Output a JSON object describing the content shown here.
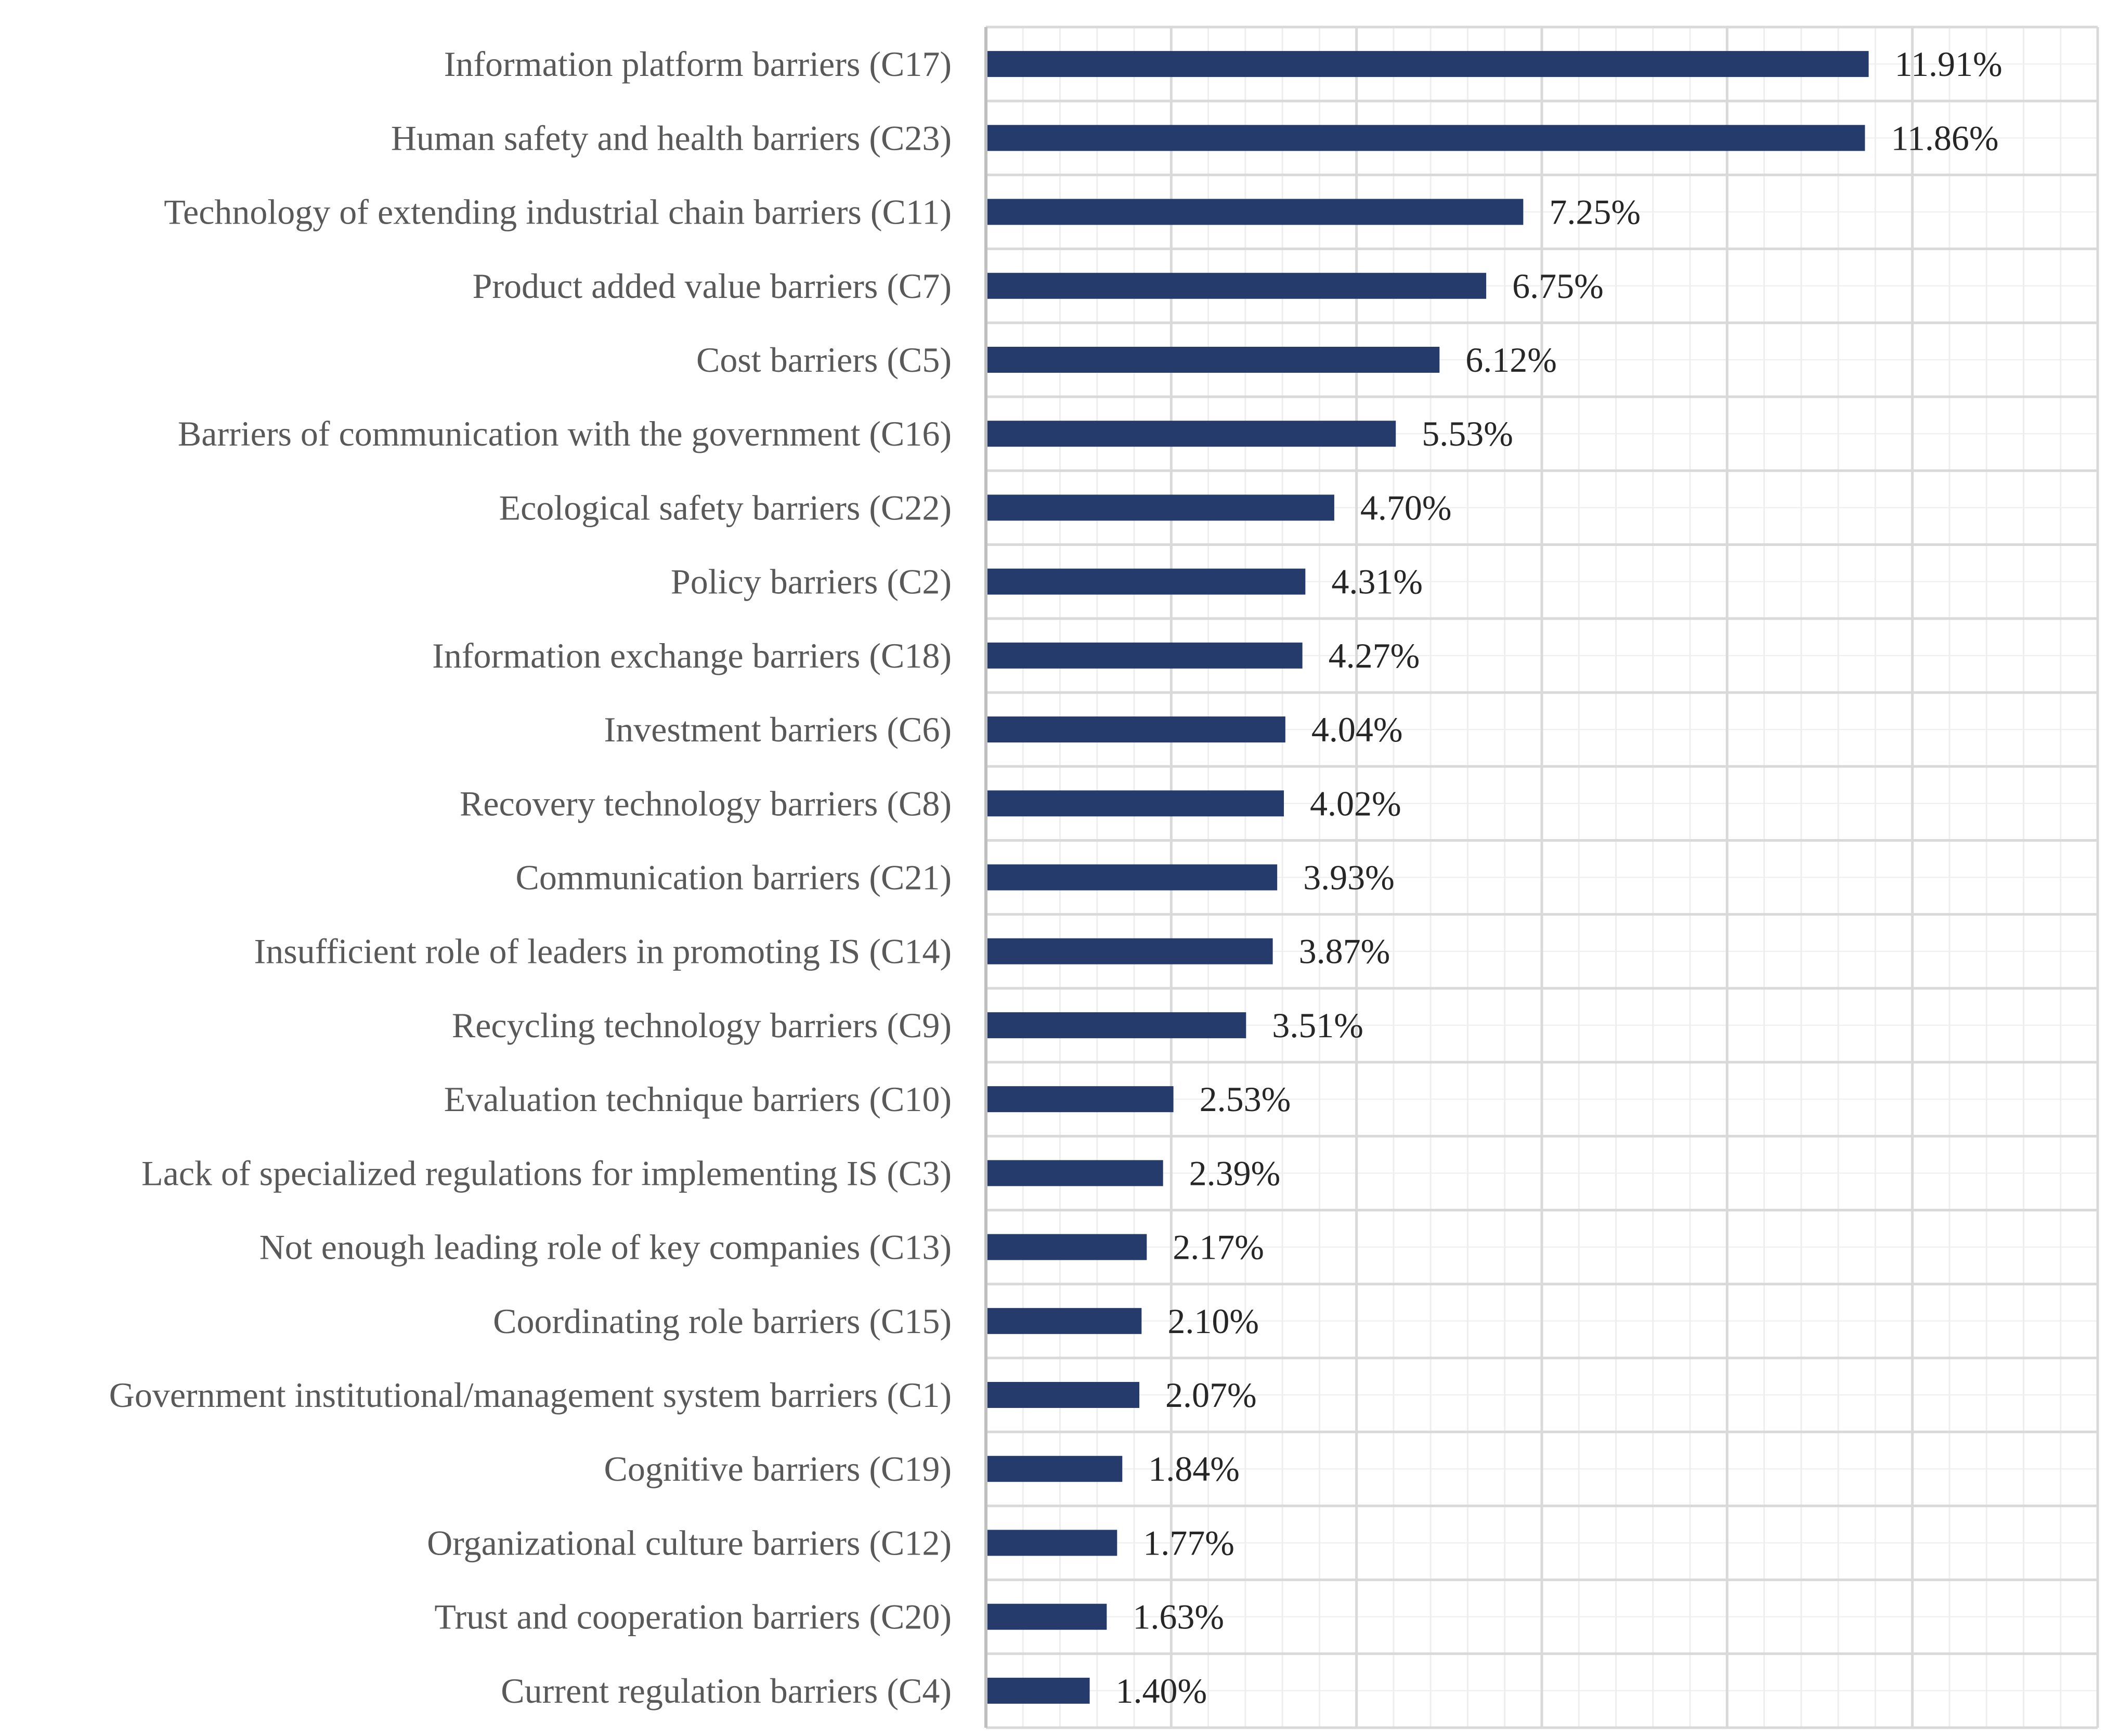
{
  "chart_data": {
    "type": "bar",
    "orientation": "horizontal",
    "title": "",
    "xlabel": "",
    "ylabel": "",
    "xlim": [
      0,
      15
    ],
    "grid": true,
    "bar_color": "#243B6B",
    "grid_major_color": "#D9D9D9",
    "grid_minor_color": "#EEEEEE",
    "categories": [
      "Information platform barriers (C17)",
      "Human safety and health barriers (C23)",
      "Technology of extending industrial chain barriers (C11)",
      "Product added value barriers (C7)",
      "Cost barriers (C5)",
      "Barriers of communication with the government (C16)",
      "Ecological safety barriers (C22)",
      "Policy barriers (C2)",
      "Information exchange barriers (C18)",
      "Investment barriers (C6)",
      "Recovery technology barriers (C8)",
      "Communication barriers (C21)",
      "Insufficient role of leaders in promoting IS (C14)",
      "Recycling technology barriers (C9)",
      "Evaluation technique barriers (C10)",
      "Lack of specialized regulations for implementing IS (C3)",
      "Not enough leading role of key companies (C13)",
      "Coordinating role barriers (C15)",
      "Government institutional/management system barriers (C1)",
      "Cognitive barriers (C19)",
      "Organizational culture barriers (C12)",
      "Trust and cooperation barriers (C20)",
      "Current regulation barriers (C4)"
    ],
    "values": [
      11.91,
      11.86,
      7.25,
      6.75,
      6.12,
      5.53,
      4.7,
      4.31,
      4.27,
      4.04,
      4.02,
      3.93,
      3.87,
      3.51,
      2.53,
      2.39,
      2.17,
      2.1,
      2.07,
      1.84,
      1.77,
      1.63,
      1.4
    ],
    "value_labels": [
      "11.91%",
      "11.86%",
      "7.25%",
      "6.75%",
      "6.12%",
      "5.53%",
      "4.70%",
      "4.31%",
      "4.27%",
      "4.04%",
      "4.02%",
      "3.93%",
      "3.87%",
      "3.51%",
      "2.53%",
      "2.39%",
      "2.17%",
      "2.10%",
      "2.07%",
      "1.84%",
      "1.77%",
      "1.63%",
      "1.40%"
    ]
  }
}
